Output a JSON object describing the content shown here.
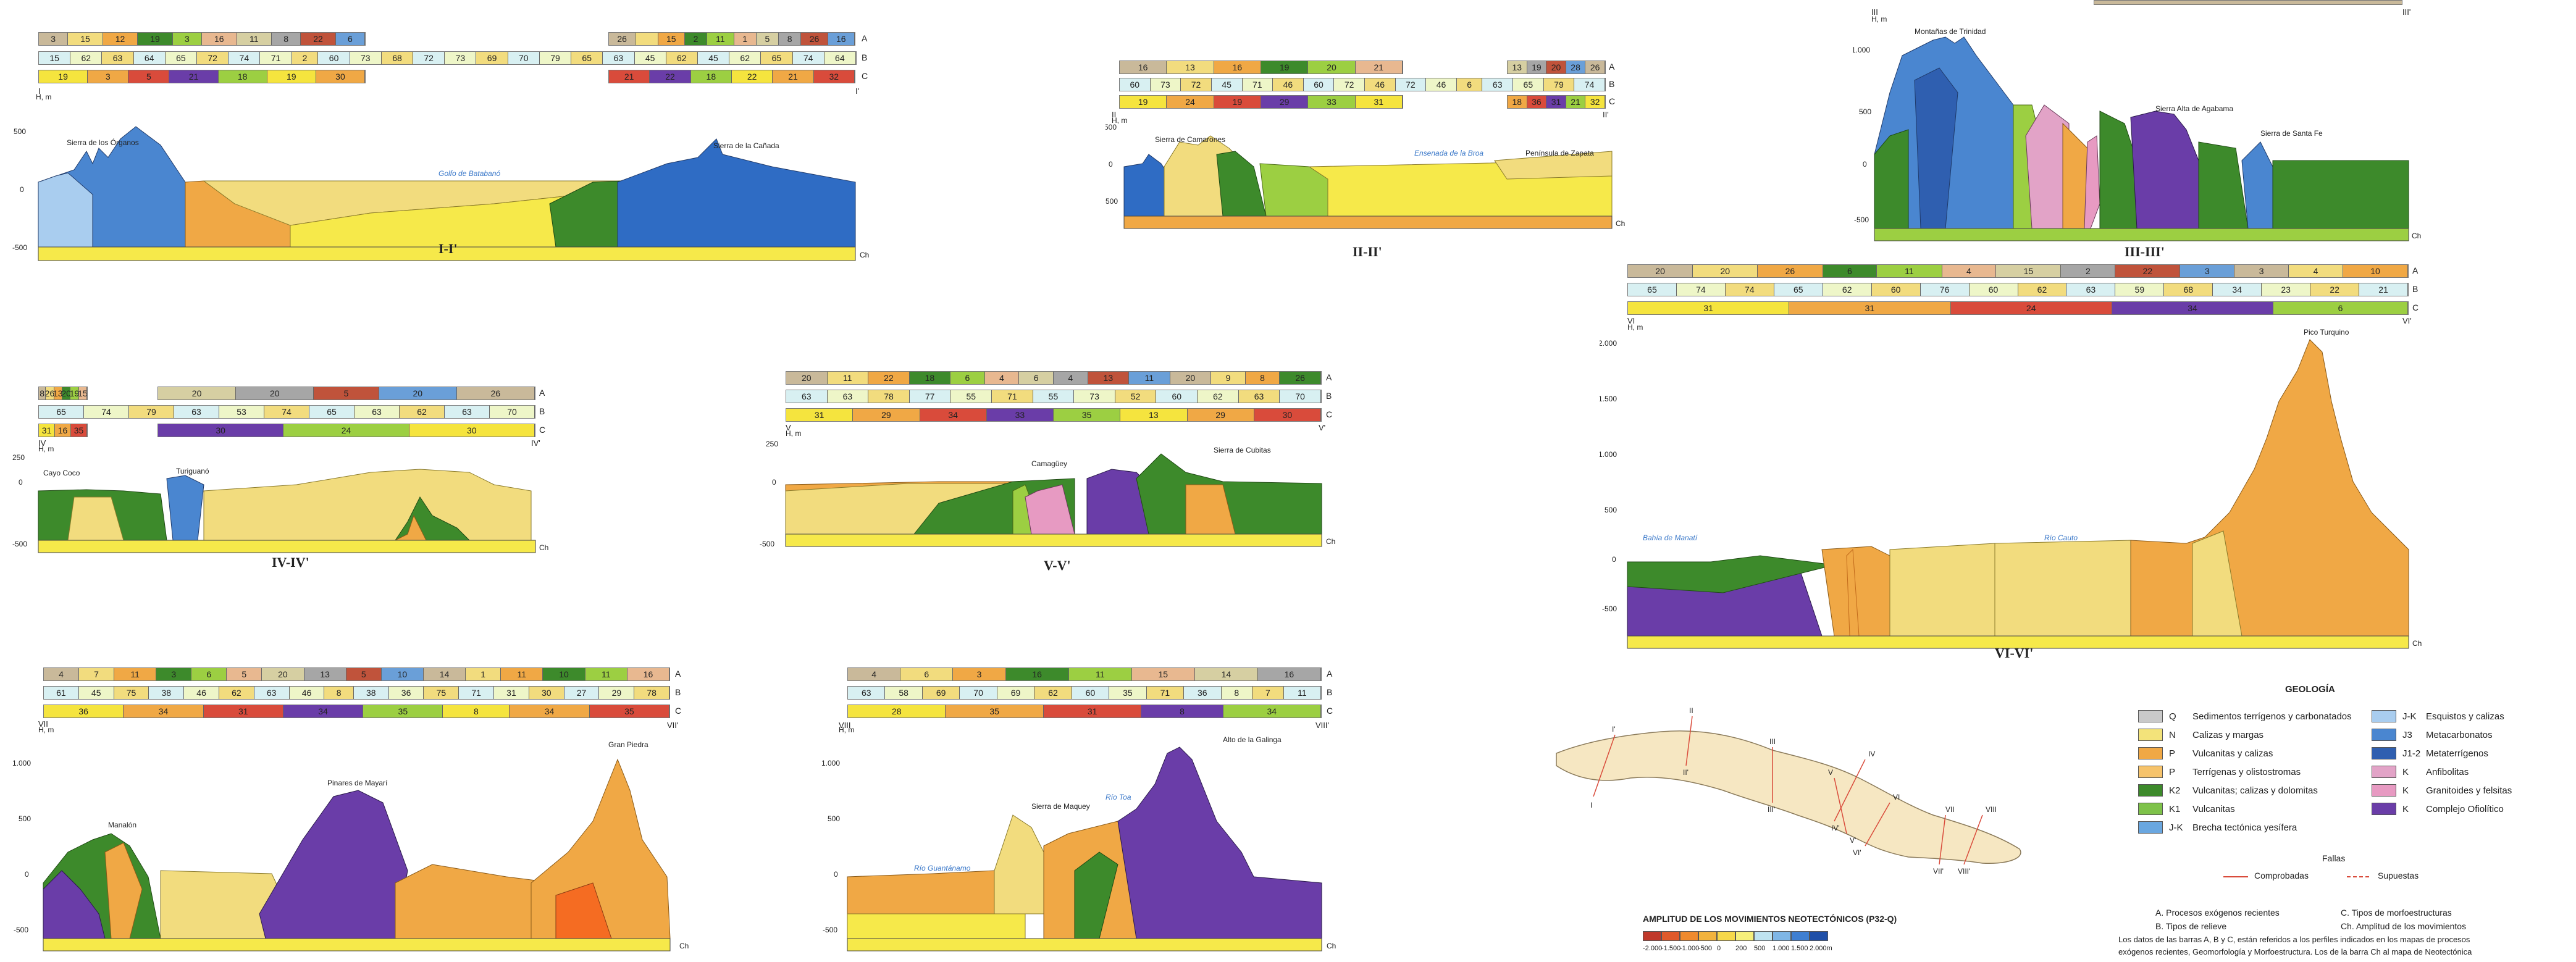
{
  "colors": {
    "sea": "#4a86d0",
    "light_blue": "#a9cdef",
    "tan": "#f2dc7e",
    "orange": "#f0a845",
    "green": "#3d8a2b",
    "lime": "#9ccf42",
    "purple": "#6a3da8",
    "pink": "#e79ac2",
    "yellow": "#f6e94a",
    "red": "#d94b3b",
    "brick": "#c0533b",
    "bar_a": "#c9b99a",
    "bar_b": "#d8f0f2",
    "bar_c": "#f5e43e"
  },
  "profiles": [
    {
      "id": "I-I'",
      "title": "I-I'",
      "start_label": "I",
      "end_label": "I'",
      "axis_title": "H, m",
      "ticks": [
        "500",
        "0",
        "-500"
      ],
      "ch_label": "Ch",
      "bar_letters": [
        "A",
        "B",
        "C"
      ],
      "bars": {
        "A": [
          "3",
          "15",
          "12",
          "19",
          "3",
          "16",
          "11",
          "8",
          "22",
          "6",
          "26",
          "",
          "15",
          "2",
          "11",
          "1",
          "5",
          "8",
          "26",
          "16"
        ],
        "B": [
          "15",
          "62",
          "63",
          "64",
          "65",
          "72",
          "74",
          "71",
          "2",
          "60",
          "73",
          "68",
          "72",
          "73",
          "69",
          "70",
          "79",
          "65",
          "63",
          "45",
          "62",
          "45",
          "62",
          "65",
          "74",
          "64"
        ],
        "C": [
          "19",
          "3",
          "5",
          "21",
          "18",
          "19",
          "30",
          "21",
          "22",
          "18",
          "22",
          "21",
          "32"
        ]
      },
      "places": [
        "Sierra de los Órganos",
        "Golfo de Batabanó",
        "Sierra de la Cañada"
      ]
    },
    {
      "id": "II-II'",
      "title": "II-II'",
      "start_label": "II",
      "end_label": "II'",
      "axis_title": "H, m",
      "ticks": [
        "500",
        "0",
        "-500"
      ],
      "ch_label": "Ch",
      "bar_letters": [
        "A",
        "B",
        "C"
      ],
      "bars": {
        "A": [
          "16",
          "13",
          "16",
          "19",
          "20",
          "21",
          "13",
          "19",
          "20",
          "28",
          "26"
        ],
        "B": [
          "60",
          "73",
          "72",
          "45",
          "71",
          "46",
          "60",
          "72",
          "46",
          "72",
          "46",
          "6",
          "63",
          "65",
          "79",
          "74"
        ],
        "C": [
          "19",
          "24",
          "19",
          "29",
          "33",
          "31",
          "18",
          "36",
          "31",
          "21",
          "32"
        ]
      },
      "places": [
        "Sierra de Camarones",
        "Ensenada de la Broa",
        "Península de Zapata"
      ]
    },
    {
      "id": "III-III'",
      "title": "III-III'",
      "start_label": "III",
      "end_label": "III'",
      "axis_title": "H, m",
      "ticks": [
        "1.000",
        "500",
        "0",
        "-500"
      ],
      "ch_label": "Ch",
      "places": [
        "Montañas de Trinidad",
        "Sierra Alta de Agabama",
        "Sierra de Santa Fe"
      ]
    },
    {
      "id": "IV-IV'",
      "title": "IV-IV'",
      "start_label": "IV",
      "end_label": "IV'",
      "axis_title": "H, m",
      "ticks": [
        "250",
        "0",
        "-500"
      ],
      "ch_label": "Ch",
      "bar_letters": [
        "A",
        "B",
        "C"
      ],
      "bars": {
        "A": [
          "8",
          "26",
          "13",
          "20",
          "19",
          "15",
          "20",
          "20",
          "5",
          "20",
          "26"
        ],
        "B": [
          "65",
          "74",
          "79",
          "63",
          "53",
          "74",
          "65",
          "63",
          "62",
          "63",
          "70"
        ],
        "C": [
          "31",
          "16",
          "35",
          "30",
          "24",
          "30"
        ]
      },
      "places": [
        "Cayo Coco",
        "Turiguanó"
      ]
    },
    {
      "id": "V-V'",
      "title": "V-V'",
      "start_label": "V",
      "end_label": "V'",
      "axis_title": "H, m",
      "ticks": [
        "250",
        "0",
        "-500"
      ],
      "ch_label": "Ch",
      "bar_letters": [
        "A",
        "B",
        "C"
      ],
      "bars": {
        "A": [
          "20",
          "11",
          "22",
          "18",
          "6",
          "4",
          "6",
          "4",
          "13",
          "11",
          "20",
          "9",
          "8",
          "26"
        ],
        "B": [
          "63",
          "63",
          "78",
          "77",
          "55",
          "71",
          "55",
          "73",
          "52",
          "60",
          "62",
          "63",
          "70"
        ],
        "C": [
          "31",
          "29",
          "34",
          "33",
          "35",
          "13",
          "29",
          "30"
        ]
      },
      "places": [
        "Camagüey",
        "Sierra de Cubitas"
      ]
    },
    {
      "id": "VI-VI'",
      "title": "VI-VI'",
      "start_label": "VI",
      "end_label": "VI'",
      "axis_title": "H, m",
      "ticks": [
        "2.000",
        "1.500",
        "1.000",
        "500",
        "0",
        "-500"
      ],
      "ch_label": "Ch",
      "bar_letters": [
        "A",
        "B",
        "C"
      ],
      "bars": {
        "A": [
          "20",
          "20",
          "26",
          "6",
          "11",
          "4",
          "15",
          "2",
          "22",
          "3",
          "3",
          "4",
          "10"
        ],
        "B": [
          "65",
          "74",
          "74",
          "65",
          "62",
          "60",
          "76",
          "60",
          "62",
          "63",
          "59",
          "68",
          "34",
          "23",
          "22",
          "21"
        ],
        "C": [
          "31",
          "31",
          "24",
          "34",
          "6"
        ]
      },
      "places": [
        "Bahía de Manatí",
        "Río Cauto",
        "Pico Turquino"
      ]
    },
    {
      "id": "VII-VII'",
      "title": "VII-VII'",
      "start_label": "VII",
      "end_label": "VII'",
      "axis_title": "H, m",
      "ticks": [
        "1.000",
        "500",
        "0",
        "-500"
      ],
      "ch_label": "Ch",
      "bar_letters": [
        "A",
        "B",
        "C"
      ],
      "bars": {
        "A": [
          "4",
          "7",
          "11",
          "3",
          "6",
          "5",
          "20",
          "13",
          "5",
          "10",
          "14",
          "1",
          "11",
          "10",
          "11",
          "16"
        ],
        "B": [
          "61",
          "45",
          "75",
          "38",
          "46",
          "62",
          "63",
          "46",
          "8",
          "38",
          "36",
          "75",
          "71",
          "31",
          "30",
          "27",
          "29",
          "78"
        ],
        "C": [
          "36",
          "34",
          "31",
          "34",
          "35",
          "8",
          "34",
          "35"
        ]
      },
      "places": [
        "Manalón",
        "Pinares de Mayarí",
        "Gran Piedra"
      ]
    },
    {
      "id": "VIII-VIII'",
      "title": "VIII-VIII'",
      "start_label": "VIII",
      "end_label": "VIII'",
      "axis_title": "H, m",
      "ticks": [
        "1.000",
        "500",
        "0",
        "-500"
      ],
      "ch_label": "Ch",
      "bar_letters": [
        "A",
        "B",
        "C"
      ],
      "bars": {
        "A": [
          "4",
          "6",
          "3",
          "16",
          "11",
          "15",
          "14",
          "16"
        ],
        "B": [
          "63",
          "58",
          "69",
          "70",
          "69",
          "62",
          "60",
          "35",
          "71",
          "36",
          "8",
          "7",
          "11"
        ],
        "C": [
          "28",
          "35",
          "31",
          "8",
          "34"
        ]
      },
      "places": [
        "Sierra de Maquey",
        "Río Guantánamo",
        "Río Toa",
        "Alto de la Galinga"
      ]
    }
  ],
  "location_map": {
    "labels": [
      "I",
      "I'",
      "II",
      "II'",
      "III",
      "III'",
      "IV",
      "IV'",
      "V",
      "V'",
      "VI",
      "VI'",
      "VII",
      "VII'",
      "VIII",
      "VIII'"
    ]
  },
  "legend": {
    "title": "GEOLOGÍA",
    "left": [
      {
        "sym": "Q",
        "label": "Sedimentos terrígenos y carbonatados",
        "color": "#c9c9c9"
      },
      {
        "sym": "N",
        "label": "Calizas y margas",
        "color": "#f3e37a"
      },
      {
        "sym": "P",
        "label": "Vulcanitas y calizas",
        "color": "#f0a845"
      },
      {
        "sym": "P",
        "label": "Terrígenas y olistostromas",
        "color": "#f6c36b"
      },
      {
        "sym": "K2",
        "label": "Vulcanitas; calizas y dolomitas",
        "color": "#3d8a2b"
      },
      {
        "sym": "K1",
        "label": "Vulcanitas",
        "color": "#7ec24a"
      },
      {
        "sym": "J-K",
        "label": "Brecha tectónica yesífera",
        "color": "#6aa7e0"
      }
    ],
    "right": [
      {
        "sym": "J-K",
        "label": "Esquistos y calizas",
        "color": "#a9cdef"
      },
      {
        "sym": "J3",
        "label": "Metacarbonatos",
        "color": "#4a86d0"
      },
      {
        "sym": "J1-2",
        "label": "Metaterrígenos",
        "color": "#2f5fb0"
      },
      {
        "sym": "K",
        "label": "Anfibolitas",
        "color": "#e2a3c7"
      },
      {
        "sym": "K",
        "label": "Granitoides y felsitas",
        "color": "#e79ac2"
      },
      {
        "sym": "K",
        "label": "Complejo Ofiolítico",
        "color": "#6a3da8"
      }
    ],
    "faults_title": "Fallas",
    "faults": [
      "Comprobadas",
      "Supuestas"
    ]
  },
  "amplitude": {
    "title": "AMPLITUD DE LOS MOVIMIENTOS NEOTECTÓNICOS (P32-Q)",
    "ticks": [
      "-2.000",
      "-1.500",
      "-1.000",
      "-500",
      "0",
      "200",
      "500",
      "1.000",
      "1.500",
      "2.000m"
    ],
    "colors": [
      "#c0392b",
      "#e05a2b",
      "#ef8a2e",
      "#f2b33d",
      "#f6d84a",
      "#f6ef7a",
      "#bfe3f0",
      "#7fb6e6",
      "#3f7fd1",
      "#1f4fa8"
    ]
  },
  "notes": {
    "a": "A. Procesos exógenos recientes",
    "b": "B. Tipos de relieve",
    "c": "C. Tipos de morfoestructuras",
    "ch": "Ch. Amplitud de los movimientos",
    "text1": "Los datos de las barras A, B y C, están referidos a los perfiles indicados en los mapas de procesos",
    "text2": "exógenos recientes, Geomorfología y Morfoestructura. Los de la barra Ch al mapa de Neotectónica"
  }
}
